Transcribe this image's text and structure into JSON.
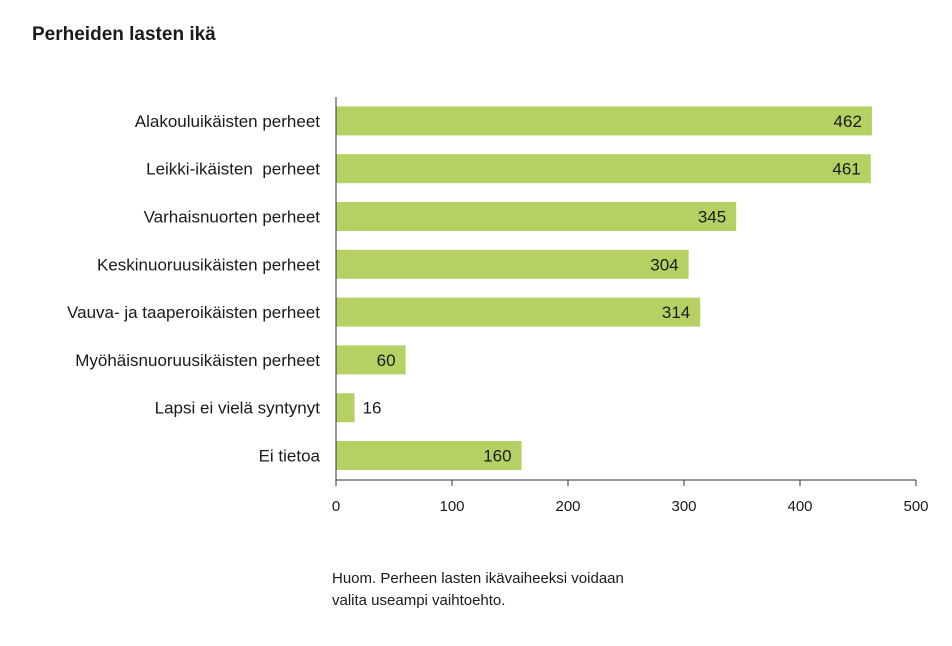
{
  "chart_data": {
    "type": "bar",
    "orientation": "horizontal",
    "title": "Perheiden lasten ikä",
    "categories": [
      "Alakouluikäisten perheet",
      "Leikki-ikäisten  perheet",
      "Varhaisnuorten perheet",
      "Keskinuoruusikäisten perheet",
      "Vauva- ja taaperoikäisten perheet",
      "Myöhäisnuoruusikäisten perheet",
      "Lapsi ei vielä syntynyt",
      "Ei tietoa"
    ],
    "values": [
      462,
      461,
      345,
      304,
      314,
      60,
      16,
      160
    ],
    "xlim": [
      0,
      500
    ],
    "xticks": [
      0,
      100,
      200,
      300,
      400,
      500
    ],
    "grid": false,
    "bar_color": "#b5d163",
    "note_lines": [
      "Huom. Perheen lasten ikävaiheeksi voidaan",
      "valita useampi vaihtoehto."
    ]
  }
}
